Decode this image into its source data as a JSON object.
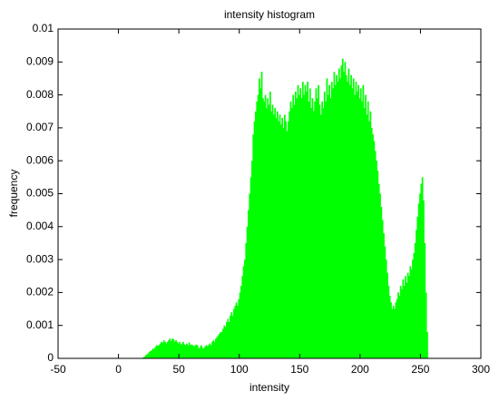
{
  "chart_data": {
    "type": "histogram",
    "title": "intensity histogram",
    "x_label": "intensity",
    "y_label": "frequency",
    "color": "#00ff00",
    "xlim": [
      -50,
      300
    ],
    "xticks": [
      -50,
      0,
      50,
      100,
      150,
      200,
      250,
      300
    ],
    "ylim": [
      0,
      0.01
    ],
    "yticks": [
      0,
      0.001,
      0.002,
      0.003,
      0.004,
      0.005,
      0.006,
      0.007,
      0.008,
      0.009,
      0.01
    ],
    "bins": [
      0,
      1,
      2,
      3,
      4,
      5,
      6,
      7,
      8,
      9,
      10,
      11,
      12,
      13,
      14,
      15,
      16,
      17,
      18,
      19,
      20,
      21,
      22,
      23,
      24,
      25,
      26,
      27,
      28,
      29,
      30,
      31,
      32,
      33,
      34,
      35,
      36,
      37,
      38,
      39,
      40,
      41,
      42,
      43,
      44,
      45,
      46,
      47,
      48,
      49,
      50,
      51,
      52,
      53,
      54,
      55,
      56,
      57,
      58,
      59,
      60,
      61,
      62,
      63,
      64,
      65,
      66,
      67,
      68,
      69,
      70,
      71,
      72,
      73,
      74,
      75,
      76,
      77,
      78,
      79,
      80,
      81,
      82,
      83,
      84,
      85,
      86,
      87,
      88,
      89,
      90,
      91,
      92,
      93,
      94,
      95,
      96,
      97,
      98,
      99,
      100,
      101,
      102,
      103,
      104,
      105,
      106,
      107,
      108,
      109,
      110,
      111,
      112,
      113,
      114,
      115,
      116,
      117,
      118,
      119,
      120,
      121,
      122,
      123,
      124,
      125,
      126,
      127,
      128,
      129,
      130,
      131,
      132,
      133,
      134,
      135,
      136,
      137,
      138,
      139,
      140,
      141,
      142,
      143,
      144,
      145,
      146,
      147,
      148,
      149,
      150,
      151,
      152,
      153,
      154,
      155,
      156,
      157,
      158,
      159,
      160,
      161,
      162,
      163,
      164,
      165,
      166,
      167,
      168,
      169,
      170,
      171,
      172,
      173,
      174,
      175,
      176,
      177,
      178,
      179,
      180,
      181,
      182,
      183,
      184,
      185,
      186,
      187,
      188,
      189,
      190,
      191,
      192,
      193,
      194,
      195,
      196,
      197,
      198,
      199,
      200,
      201,
      202,
      203,
      204,
      205,
      206,
      207,
      208,
      209,
      210,
      211,
      212,
      213,
      214,
      215,
      216,
      217,
      218,
      219,
      220,
      221,
      222,
      223,
      224,
      225,
      226,
      227,
      228,
      229,
      230,
      231,
      232,
      233,
      234,
      235,
      236,
      237,
      238,
      239,
      240,
      241,
      242,
      243,
      244,
      245,
      246,
      247,
      248,
      249,
      250,
      251,
      252,
      253,
      254,
      255,
      256
    ],
    "values": [
      0,
      0,
      0,
      0,
      0,
      0,
      0,
      0,
      0,
      0,
      0,
      0,
      0,
      0,
      0,
      0,
      0,
      0,
      0,
      0,
      3e-05,
      5e-05,
      0.0001,
      0.00012,
      0.00015,
      0.0002,
      0.00022,
      0.00025,
      0.0003,
      0.00028,
      0.00035,
      0.0004,
      0.00038,
      0.0004,
      0.00045,
      0.0005,
      0.00048,
      0.00055,
      0.0005,
      0.00045,
      0.0005,
      0.00055,
      0.0006,
      0.00052,
      0.0006,
      0.00058,
      0.0005,
      0.00055,
      0.0005,
      0.00045,
      0.0005,
      0.00042,
      0.00045,
      0.0005,
      0.00042,
      0.0004,
      0.00045,
      0.0004,
      0.00048,
      0.0004,
      0.00042,
      0.0004,
      0.00035,
      0.0004,
      0.00042,
      0.00038,
      0.0003,
      0.00035,
      0.0004,
      0.00032,
      0.0003,
      0.00035,
      0.0004,
      0.00038,
      0.0004,
      0.00045,
      0.0004,
      0.0005,
      0.00055,
      0.0005,
      0.0006,
      0.00065,
      0.0007,
      0.00075,
      0.0008,
      0.0008,
      0.0009,
      0.001,
      0.00095,
      0.0011,
      0.0012,
      0.0011,
      0.0013,
      0.0014,
      0.0013,
      0.0015,
      0.0016,
      0.0017,
      0.0016,
      0.0018,
      0.002,
      0.0022,
      0.0025,
      0.0028,
      0.003,
      0.0035,
      0.004,
      0.0045,
      0.005,
      0.0055,
      0.006,
      0.0068,
      0.0072,
      0.0075,
      0.0078,
      0.008,
      0.0085,
      0.0082,
      0.0087,
      0.0079,
      0.0078,
      0.008,
      0.0076,
      0.0079,
      0.0077,
      0.0081,
      0.0075,
      0.0077,
      0.0074,
      0.0076,
      0.0073,
      0.0075,
      0.0072,
      0.0074,
      0.0071,
      0.0073,
      0.007,
      0.0074,
      0.0072,
      0.0069,
      0.0072,
      0.0075,
      0.0078,
      0.0076,
      0.008,
      0.0077,
      0.0081,
      0.0079,
      0.0083,
      0.008,
      0.0082,
      0.0079,
      0.0084,
      0.008,
      0.0083,
      0.0081,
      0.0084,
      0.0078,
      0.0082,
      0.0076,
      0.0079,
      0.0075,
      0.0078,
      0.0082,
      0.0079,
      0.0083,
      0.0077,
      0.0074,
      0.0078,
      0.0076,
      0.0081,
      0.0078,
      0.0085,
      0.008,
      0.0083,
      0.0079,
      0.0084,
      0.0082,
      0.0087,
      0.0083,
      0.0086,
      0.0084,
      0.0088,
      0.0085,
      0.0089,
      0.0091,
      0.0087,
      0.009,
      0.0086,
      0.0084,
      0.0088,
      0.0083,
      0.0086,
      0.0082,
      0.0085,
      0.008,
      0.0084,
      0.0081,
      0.0083,
      0.0079,
      0.0082,
      0.0078,
      0.0083,
      0.0076,
      0.008,
      0.0074,
      0.0078,
      0.0072,
      0.0075,
      0.007,
      0.0068,
      0.0066,
      0.0063,
      0.006,
      0.0057,
      0.0053,
      0.005,
      0.0046,
      0.0042,
      0.0038,
      0.0034,
      0.003,
      0.0026,
      0.0022,
      0.0019,
      0.0017,
      0.0015,
      0.0016,
      0.0015,
      0.0017,
      0.0018,
      0.002,
      0.0019,
      0.0022,
      0.0021,
      0.0024,
      0.0022,
      0.0025,
      0.0023,
      0.0026,
      0.0025,
      0.0028,
      0.0027,
      0.003,
      0.0032,
      0.0035,
      0.0039,
      0.0043,
      0.0047,
      0.005,
      0.0053,
      0.0055,
      0.0048,
      0.0035,
      0.002,
      0.0008
    ]
  }
}
